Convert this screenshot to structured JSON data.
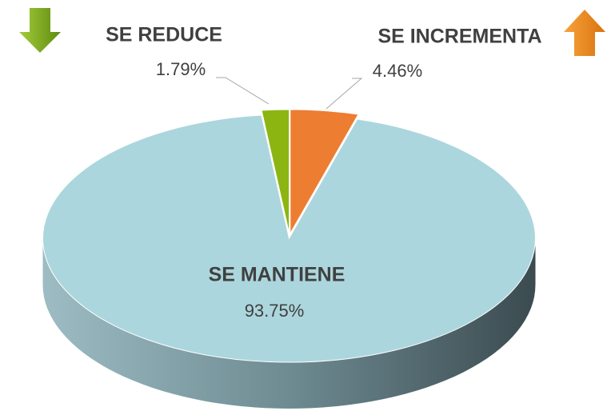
{
  "chart_data": {
    "type": "pie3d",
    "categories": [
      "SE INCREMENTA",
      "SE MANTIENE",
      "SE REDUCE"
    ],
    "values": [
      4.46,
      93.75,
      1.79
    ],
    "value_labels": [
      "4.46%",
      "93.75%",
      "1.79%"
    ],
    "colors": [
      "#ed7d31",
      "#acd6dd",
      "#8cb512"
    ]
  }
}
